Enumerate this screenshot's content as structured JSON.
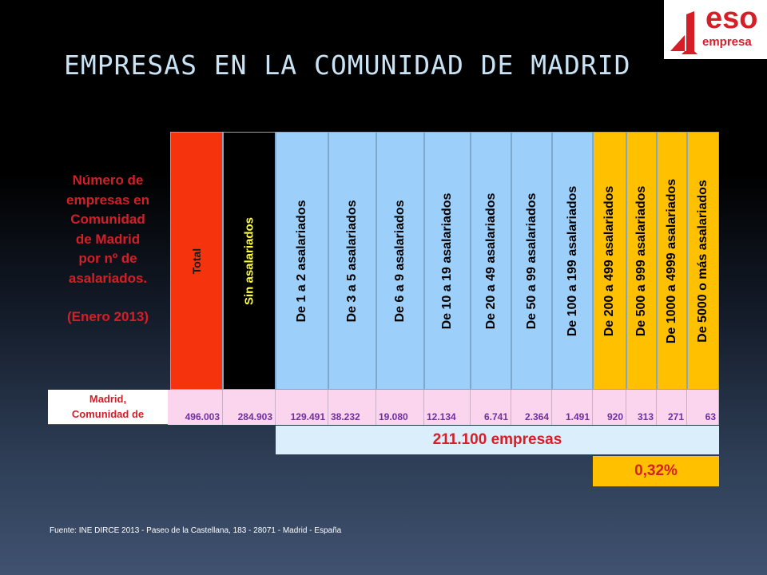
{
  "title": "EMPRESAS EN LA COMUNIDAD DE MADRID",
  "logo": {
    "brand": "eso",
    "subtext": "empresa",
    "mark_digit": "1",
    "color": "#d51e27"
  },
  "side_label": {
    "line1": "Número de",
    "line2": "empresas en",
    "line3": "Comunidad",
    "line4": "de Madrid",
    "line5": "por nº de",
    "line6": "asalariados.",
    "date": "(Enero 2013)"
  },
  "table": {
    "headers": [
      "Total",
      "Sin asalariados",
      "De 1 a 2 asalariados",
      "De 3 a 5 asalariados",
      "De 6 a 9 asalariados",
      "De 10 a 19 asalariados",
      "De 20 a 49 asalariados",
      "De 50 a 99 asalariados",
      "De 100 a 199 asalariados",
      "De 200 a 499 asalariados",
      "De 500 a 999 asalariados",
      "De 1000 a 4999 asalariados",
      "De 5000 o más asalariados"
    ],
    "row_label_line1": "Madrid,",
    "row_label_line2": "Comunidad de",
    "values": [
      "496.003",
      "284.903",
      "129.491",
      "38.232",
      "19.080",
      "12.134",
      "6.741",
      "2.364",
      "1.491",
      "920",
      "313",
      "271",
      "63"
    ]
  },
  "summary": "211.100 empresas",
  "percentage": "0,32%",
  "source": "Fuente: INE  DIRCE 2013 - Paseo de la Castellana, 183 - 28071 - Madrid - España"
}
